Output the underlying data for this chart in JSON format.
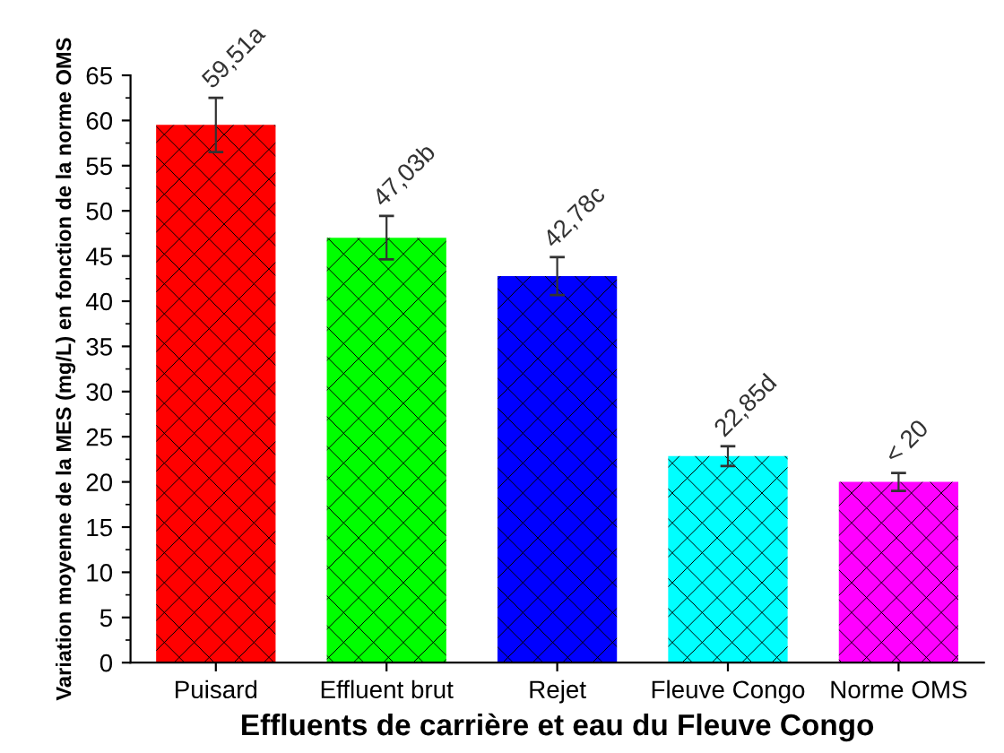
{
  "chart_data": {
    "type": "bar",
    "xlabel": "Effluents de carrière et eau du Fleuve Congo",
    "ylabel": "Variation moyenne de la MES (mg/L) en fonction de la norme OMS",
    "categories": [
      "Puisard",
      "Effluent brut",
      "Rejet",
      "Fleuve Congo",
      "Norme OMS"
    ],
    "values": [
      59.51,
      47.03,
      42.78,
      22.85,
      20
    ],
    "colors": [
      "#ff0000",
      "#00ff00",
      "#0000ff",
      "#00ffff",
      "#ff00ff"
    ],
    "errors": [
      3.0,
      2.4,
      2.1,
      1.1,
      1.0
    ],
    "value_labels": [
      "59,51a",
      "47,03b",
      "42,78c",
      "22,85d",
      "< 20"
    ],
    "ylim": [
      0,
      65
    ],
    "yticks": [
      0,
      5,
      10,
      15,
      20,
      25,
      30,
      35,
      40,
      45,
      50,
      55,
      60,
      65
    ],
    "grid": false,
    "legend": false
  }
}
